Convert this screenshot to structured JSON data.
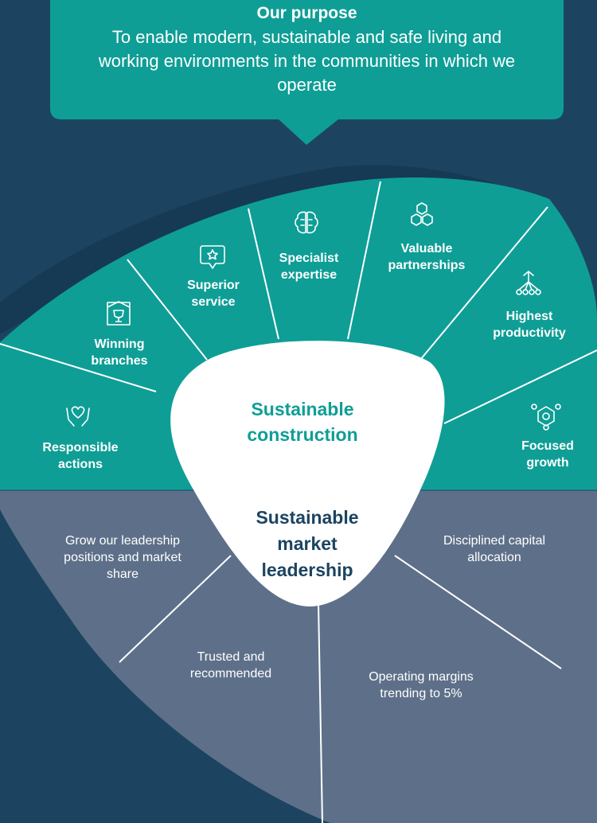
{
  "purpose": {
    "title": "Our purpose",
    "text": "To enable modern, sustainable and safe living and working environments in the communities in which we operate"
  },
  "core": {
    "upper": "Sustainable construction",
    "lower": "Sustainable market leadership"
  },
  "pillars": [
    {
      "label": "Responsible actions",
      "icon": "hands-heart-icon"
    },
    {
      "label": "Winning branches",
      "icon": "trophy-building-icon"
    },
    {
      "label": "Superior service",
      "icon": "star-speech-icon"
    },
    {
      "label": "Specialist expertise",
      "icon": "brain-icon"
    },
    {
      "label": "Valuable partnerships",
      "icon": "hexagons-icon"
    },
    {
      "label": "Highest productivity",
      "icon": "network-icon"
    },
    {
      "label": "Focused growth",
      "icon": "target-nodes-icon"
    }
  ],
  "outcomes": [
    {
      "label": "Grow our leadership positions and market share"
    },
    {
      "label": "Trusted and recommended"
    },
    {
      "label": "Operating margins trending to 5%"
    },
    {
      "label": "Disciplined capital allocation"
    }
  ],
  "colors": {
    "background": "#1c4460",
    "teal": "#0e9e96",
    "slate": "#5e7089",
    "navy_text": "#1b4461",
    "teal_text": "#0e9e96"
  }
}
